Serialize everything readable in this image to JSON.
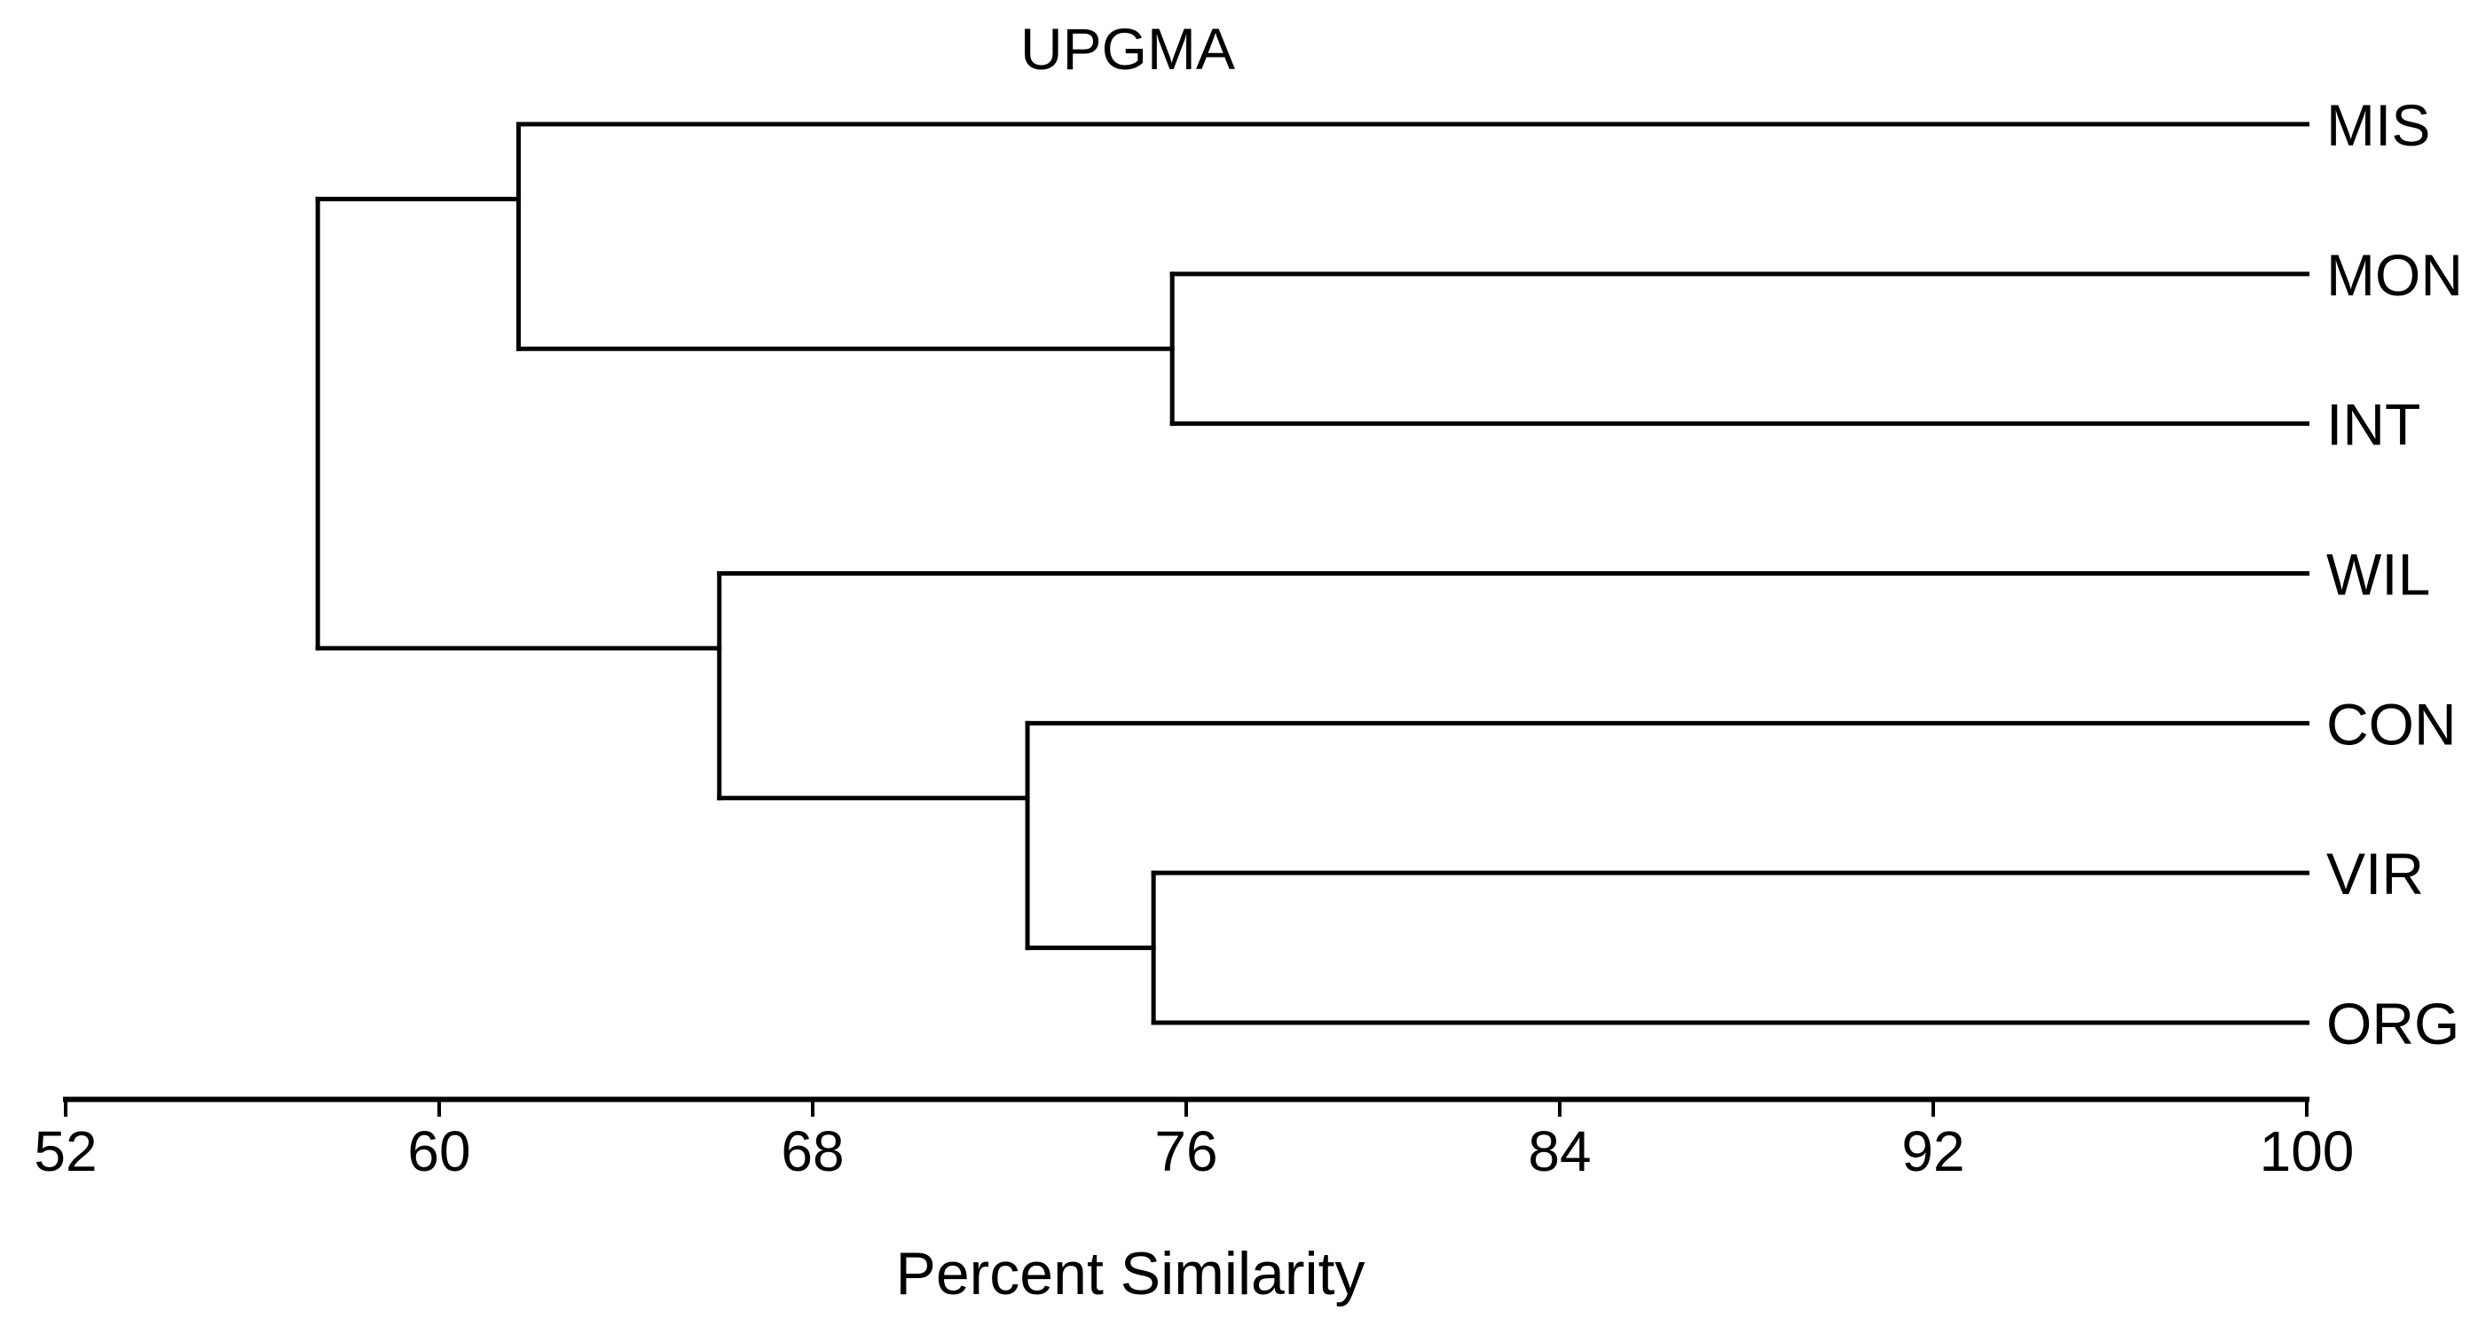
{
  "figure": {
    "title": "UPGMA",
    "x_axis_label": "Percent Similarity",
    "background_color": "#ffffff",
    "line_color": "#000000"
  },
  "chart_data": {
    "type": "dendrogram",
    "title": "UPGMA",
    "xlabel": "Percent Similarity",
    "orientation": "horizontal-right-leaves",
    "axis": {
      "label": "Percent Similarity",
      "min": 52,
      "max": 100,
      "ticks": [
        52,
        60,
        68,
        76,
        84,
        92,
        100
      ]
    },
    "leaves": [
      "MIS",
      "MON",
      "INT",
      "WIL",
      "CON",
      "VIR",
      "ORG"
    ],
    "merges": [
      {
        "members": [
          "MON",
          "INT"
        ],
        "similarity": 75.7
      },
      {
        "members": [
          "VIR",
          "ORG"
        ],
        "similarity": 75.3
      },
      {
        "members": [
          "CON",
          "VIR+ORG"
        ],
        "similarity": 72.6
      },
      {
        "members": [
          "WIL",
          "CON+VIR+ORG"
        ],
        "similarity": 66.0
      },
      {
        "members": [
          "MIS",
          "MON+INT"
        ],
        "similarity": 61.7
      },
      {
        "members": [
          "MIS+MON+INT",
          "WIL+CON+VIR+ORG"
        ],
        "similarity": 57.4
      }
    ],
    "tree": {
      "similarity": 57.4,
      "children": [
        {
          "similarity": 61.7,
          "children": [
            {
              "leaf": "MIS"
            },
            {
              "similarity": 75.7,
              "children": [
                {
                  "leaf": "MON"
                },
                {
                  "leaf": "INT"
                }
              ]
            }
          ]
        },
        {
          "similarity": 66.0,
          "children": [
            {
              "leaf": "WIL"
            },
            {
              "similarity": 72.6,
              "children": [
                {
                  "leaf": "CON"
                },
                {
                  "similarity": 75.3,
                  "children": [
                    {
                      "leaf": "VIR"
                    },
                    {
                      "leaf": "ORG"
                    }
                  ]
                }
              ]
            }
          ]
        }
      ]
    }
  }
}
